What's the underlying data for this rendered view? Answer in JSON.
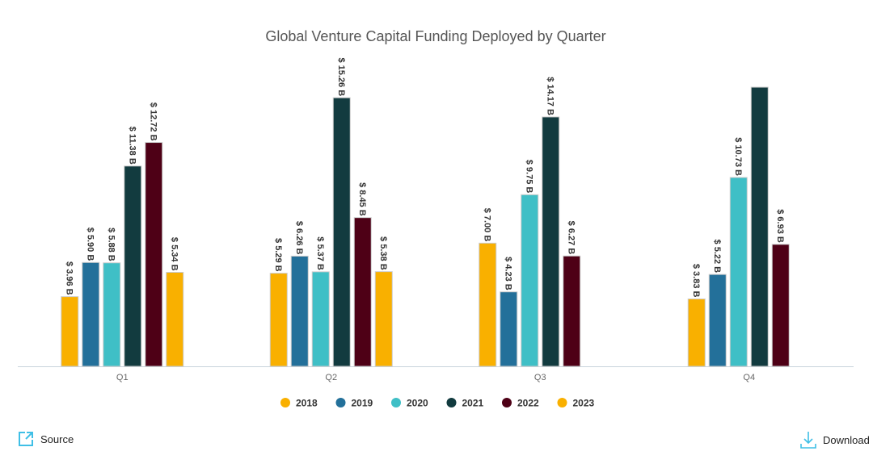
{
  "chart_data": {
    "type": "bar",
    "title": "Global Venture Capital Funding Deployed by Quarter",
    "categories": [
      "Q1",
      "Q2",
      "Q3",
      "Q4"
    ],
    "ylim": [
      0,
      16
    ],
    "grid": false,
    "legend_position": "bottom",
    "label_format": "$ {v} B",
    "series": [
      {
        "name": "2018",
        "color": "#F9B000",
        "values": [
          3.96,
          5.29,
          7.0,
          3.83
        ]
      },
      {
        "name": "2019",
        "color": "#23709A",
        "values": [
          5.9,
          6.26,
          4.23,
          5.22
        ]
      },
      {
        "name": "2020",
        "color": "#3FBFC6",
        "values": [
          5.88,
          5.37,
          9.75,
          10.73
        ]
      },
      {
        "name": "2021",
        "color": "#123B3F",
        "values": [
          11.38,
          15.26,
          14.17,
          15.86
        ],
        "labels_shown": [
          true,
          true,
          true,
          false
        ]
      },
      {
        "name": "2022",
        "color": "#4E0016",
        "values": [
          12.72,
          8.45,
          6.27,
          6.93
        ]
      },
      {
        "name": "2023",
        "color": "#F9B000",
        "values": [
          5.34,
          5.38,
          null,
          null
        ]
      }
    ]
  },
  "footer": {
    "source_label": "Source",
    "download_label": "Download",
    "icon_color": "#3FBFE6"
  }
}
